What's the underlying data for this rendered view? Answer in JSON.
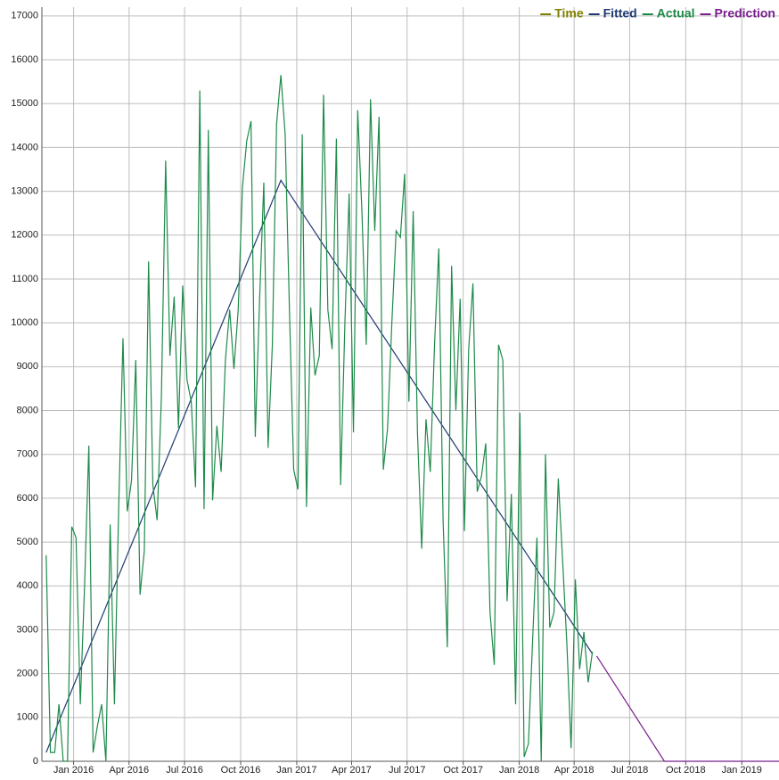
{
  "chart_data": {
    "type": "line",
    "xlim": [
      "2015-11-10",
      "2019-03-03"
    ],
    "xticks": [
      {
        "value": "2016-01-01",
        "label": "Jan 2016"
      },
      {
        "value": "2016-04-01",
        "label": "Apr 2016"
      },
      {
        "value": "2016-07-01",
        "label": "Jul 2016"
      },
      {
        "value": "2016-10-01",
        "label": "Oct 2016"
      },
      {
        "value": "2017-01-01",
        "label": "Jan 2017"
      },
      {
        "value": "2017-04-01",
        "label": "Apr 2017"
      },
      {
        "value": "2017-07-01",
        "label": "Jul 2017"
      },
      {
        "value": "2017-10-01",
        "label": "Oct 2017"
      },
      {
        "value": "2018-01-01",
        "label": "Jan 2018"
      },
      {
        "value": "2018-04-01",
        "label": "Apr 2018"
      },
      {
        "value": "2018-07-01",
        "label": "Jul 2018"
      },
      {
        "value": "2018-10-01",
        "label": "Oct 2018"
      },
      {
        "value": "2019-01-01",
        "label": "Jan 2019"
      }
    ],
    "ylim": [
      0,
      17200
    ],
    "yticks": [
      0,
      1000,
      2000,
      3000,
      4000,
      5000,
      6000,
      7000,
      8000,
      9000,
      10000,
      11000,
      12000,
      13000,
      14000,
      15000,
      16000,
      17000
    ],
    "grid": true,
    "legend": "top-right",
    "series": [
      {
        "name": "Time",
        "color": "#808000",
        "x": [],
        "values": []
      },
      {
        "name": "Fitted",
        "color": "#1f3a73",
        "x": [
          "2015-11-17",
          "2016-12-06",
          "2018-05-01"
        ],
        "values": [
          200,
          13250,
          2450
        ]
      },
      {
        "name": "Actual",
        "color": "#1e8a4a",
        "x": [
          "2015-11-17",
          "2015-11-24",
          "2015-12-01",
          "2015-12-08",
          "2015-12-15",
          "2015-12-22",
          "2015-12-29",
          "2016-01-05",
          "2016-01-12",
          "2016-01-19",
          "2016-01-26",
          "2016-02-02",
          "2016-02-09",
          "2016-02-16",
          "2016-02-23",
          "2016-03-01",
          "2016-03-08",
          "2016-03-15",
          "2016-03-22",
          "2016-03-29",
          "2016-04-05",
          "2016-04-12",
          "2016-04-19",
          "2016-04-26",
          "2016-05-03",
          "2016-05-10",
          "2016-05-17",
          "2016-05-24",
          "2016-05-31",
          "2016-06-07",
          "2016-06-14",
          "2016-06-21",
          "2016-06-28",
          "2016-07-05",
          "2016-07-12",
          "2016-07-19",
          "2016-07-26",
          "2016-08-02",
          "2016-08-09",
          "2016-08-16",
          "2016-08-23",
          "2016-08-30",
          "2016-09-06",
          "2016-09-13",
          "2016-09-20",
          "2016-09-27",
          "2016-10-04",
          "2016-10-11",
          "2016-10-18",
          "2016-10-25",
          "2016-11-01",
          "2016-11-08",
          "2016-11-15",
          "2016-11-22",
          "2016-11-29",
          "2016-12-06",
          "2016-12-13",
          "2016-12-20",
          "2016-12-27",
          "2017-01-03",
          "2017-01-10",
          "2017-01-17",
          "2017-01-24",
          "2017-01-31",
          "2017-02-07",
          "2017-02-14",
          "2017-02-21",
          "2017-02-28",
          "2017-03-07",
          "2017-03-14",
          "2017-03-21",
          "2017-03-28",
          "2017-04-04",
          "2017-04-11",
          "2017-04-18",
          "2017-04-25",
          "2017-05-02",
          "2017-05-09",
          "2017-05-16",
          "2017-05-23",
          "2017-05-30",
          "2017-06-06",
          "2017-06-13",
          "2017-06-20",
          "2017-06-27",
          "2017-07-04",
          "2017-07-11",
          "2017-07-18",
          "2017-07-25",
          "2017-08-01",
          "2017-08-08",
          "2017-08-15",
          "2017-08-22",
          "2017-08-29",
          "2017-09-05",
          "2017-09-12",
          "2017-09-19",
          "2017-09-26",
          "2017-10-03",
          "2017-10-10",
          "2017-10-17",
          "2017-10-24",
          "2017-10-31",
          "2017-11-07",
          "2017-11-14",
          "2017-11-21",
          "2017-11-28",
          "2017-12-05",
          "2017-12-12",
          "2017-12-19",
          "2017-12-26",
          "2018-01-02",
          "2018-01-09",
          "2018-01-16",
          "2018-01-23",
          "2018-01-30",
          "2018-02-06",
          "2018-02-13",
          "2018-02-20",
          "2018-02-27",
          "2018-03-06",
          "2018-03-13",
          "2018-03-20",
          "2018-03-27",
          "2018-04-03",
          "2018-04-10",
          "2018-04-17",
          "2018-04-24",
          "2018-05-01"
        ],
        "values": [
          4700,
          200,
          200,
          1300,
          0,
          0,
          5350,
          5100,
          1300,
          4000,
          7200,
          200,
          800,
          1300,
          0,
          5400,
          1300,
          5800,
          9650,
          5700,
          6400,
          9150,
          3800,
          4800,
          11400,
          6300,
          5500,
          8300,
          13700,
          9250,
          10600,
          7600,
          10850,
          8700,
          8200,
          6250,
          15300,
          5750,
          14400,
          5950,
          7650,
          6600,
          9150,
          10300,
          8950,
          10300,
          13100,
          14150,
          14600,
          7400,
          10500,
          13200,
          7150,
          9500,
          14550,
          15650,
          14300,
          10300,
          6650,
          6200,
          14300,
          5800,
          10350,
          8800,
          9250,
          15200,
          10300,
          9400,
          14200,
          6300,
          10000,
          12950,
          7500,
          14850,
          12500,
          9500,
          15100,
          12100,
          14700,
          6650,
          7600,
          10000,
          12100,
          11950,
          13400,
          8200,
          12550,
          7500,
          4850,
          7800,
          6600,
          9500,
          11700,
          5500,
          2600,
          11300,
          8000,
          10550,
          5250,
          9400,
          10900,
          6150,
          6500,
          7250,
          3400,
          2200,
          9500,
          9150,
          3650,
          6100,
          1300,
          7950,
          100,
          400,
          2800,
          5100,
          0,
          7000,
          3050,
          3400,
          6450,
          4600,
          2700,
          300,
          4150,
          2100,
          2950,
          1800,
          2500
        ]
      },
      {
        "name": "Prediction",
        "color": "#7a1f8e",
        "x": [
          "2018-05-08",
          "2018-08-27",
          "2019-03-03"
        ],
        "values": [
          2400,
          0,
          0
        ]
      }
    ]
  }
}
